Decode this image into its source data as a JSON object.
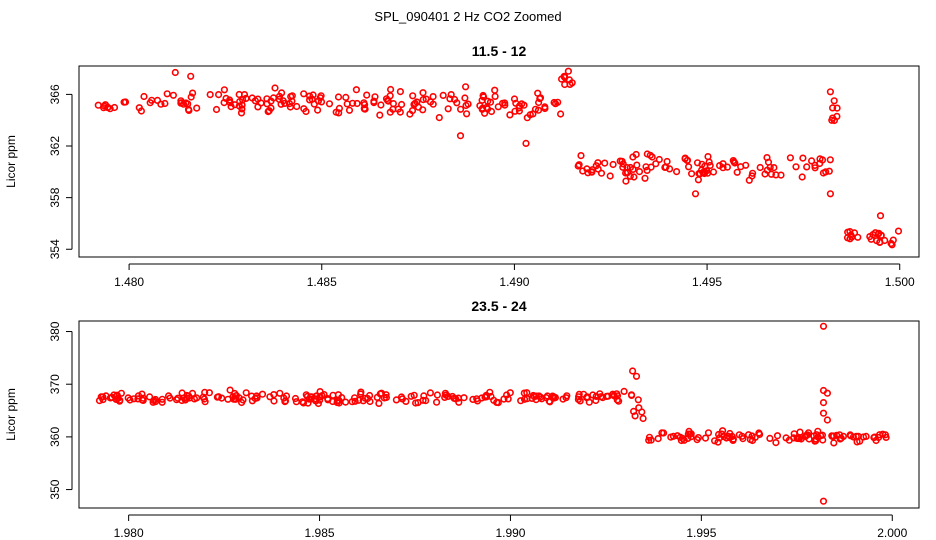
{
  "figure": {
    "title": "SPL_090401  2 Hz CO2 Zoomed",
    "colors": {
      "points": "#ff0000",
      "axes": "#000000",
      "background": "#ffffff"
    }
  },
  "chart_data": [
    {
      "type": "scatter",
      "title": "11.5 - 12",
      "xlabel": "",
      "ylabel": "Licor ppm",
      "xlim": [
        1.4787,
        1.5005
      ],
      "ylim": [
        353.4,
        368.2
      ],
      "xticks": [
        1.48,
        1.485,
        1.49,
        1.495,
        1.5
      ],
      "xtick_labels": [
        "1.480",
        "1.485",
        "1.490",
        "1.495",
        "1.500"
      ],
      "yticks": [
        354,
        358,
        362,
        366
      ],
      "ytick_labels": [
        "354",
        "358",
        "362",
        "366"
      ],
      "grid": false,
      "marker": "open circle",
      "segments": [
        {
          "x_start": 1.4792,
          "x_end": 1.4912,
          "y_mean": 365.3,
          "y_spread": 1.5
        },
        {
          "x_start": 1.4912,
          "x_end": 1.4916,
          "y_mean": 366.8,
          "y_spread": 1.0
        },
        {
          "x_start": 1.4916,
          "x_end": 1.4983,
          "y_mean": 360.4,
          "y_spread": 1.4
        },
        {
          "x_start": 1.4982,
          "x_end": 1.4984,
          "y_mean": 364.5,
          "y_spread": 1.5
        },
        {
          "x_start": 1.4985,
          "x_end": 1.5,
          "y_mean": 355.0,
          "y_spread": 1.0
        }
      ],
      "highlights": [
        {
          "x": 1.4914,
          "y": 367.8
        },
        {
          "x": 1.4913,
          "y": 367.4
        },
        {
          "x": 1.4915,
          "y": 366.9
        },
        {
          "x": 1.4982,
          "y": 366.2
        },
        {
          "x": 1.4983,
          "y": 365.5
        },
        {
          "x": 1.4982,
          "y": 358.3
        },
        {
          "x": 1.4816,
          "y": 367.4
        },
        {
          "x": 1.4812,
          "y": 367.7
        },
        {
          "x": 1.4886,
          "y": 362.8
        },
        {
          "x": 1.4903,
          "y": 362.2
        },
        {
          "x": 1.4947,
          "y": 358.3
        },
        {
          "x": 1.4995,
          "y": 356.6
        }
      ]
    },
    {
      "type": "scatter",
      "title": "23.5 - 24",
      "xlabel": "",
      "ylabel": "Licor ppm",
      "xlim": [
        1.9787,
        2.0007
      ],
      "ylim": [
        346.5,
        382.0
      ],
      "xticks": [
        1.98,
        1.985,
        1.99,
        1.995,
        2.0
      ],
      "xtick_labels": [
        "1.980",
        "1.985",
        "1.990",
        "1.995",
        "2.000"
      ],
      "yticks": [
        350,
        360,
        370,
        380
      ],
      "ytick_labels": [
        "350",
        "360",
        "370",
        "380"
      ],
      "grid": false,
      "marker": "open circle",
      "segments": [
        {
          "x_start": 1.9792,
          "x_end": 1.9932,
          "y_mean": 367.4,
          "y_spread": 1.6
        },
        {
          "x_start": 1.9932,
          "x_end": 1.9936,
          "y_mean": 366.0,
          "y_spread": 4.0
        },
        {
          "x_start": 1.9936,
          "x_end": 1.9982,
          "y_mean": 360.0,
          "y_spread": 1.4
        },
        {
          "x_start": 1.9984,
          "x_end": 2.0,
          "y_mean": 359.8,
          "y_spread": 1.3
        }
      ],
      "highlights": [
        {
          "x": 1.9932,
          "y": 372.5
        },
        {
          "x": 1.9933,
          "y": 371.5
        },
        {
          "x": 1.9982,
          "y": 381.0
        },
        {
          "x": 1.9982,
          "y": 368.8
        },
        {
          "x": 1.9983,
          "y": 368.3
        },
        {
          "x": 1.9982,
          "y": 366.5
        },
        {
          "x": 1.9982,
          "y": 364.5
        },
        {
          "x": 1.9983,
          "y": 363.2
        },
        {
          "x": 1.9982,
          "y": 347.8
        }
      ]
    }
  ]
}
